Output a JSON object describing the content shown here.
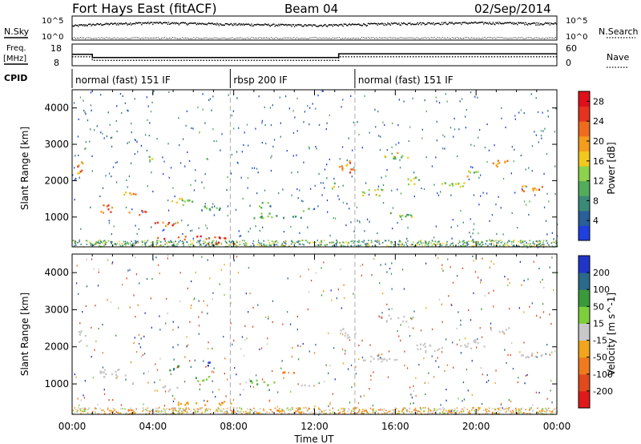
{
  "header": {
    "title": "Fort Hays East (fitACF)",
    "beam": "Beam 04",
    "date": "02/Sep/2014"
  },
  "panels": {
    "nsky_label": "N.Sky",
    "nsearch_label": "N.Search",
    "nsky_ticks": [
      "10^5",
      "10^0"
    ],
    "nsearch_ticks": [
      "10^5",
      "10^0"
    ],
    "freq_label_line1": "Freq.",
    "freq_label_line2": "[MHz]",
    "freq_ticks": [
      "18",
      "8"
    ],
    "nave_label": "Nave",
    "nave_ticks": [
      "60",
      "0"
    ],
    "cpid_label": "CPID"
  },
  "cpid_segments": [
    {
      "label": "normal (fast) 151 IF",
      "start": 0,
      "end": 7.83
    },
    {
      "label": "rbsp 200 IF",
      "start": 7.83,
      "end": 14.0
    },
    {
      "label": "normal (fast) 151 IF",
      "start": 14.0,
      "end": 24
    }
  ],
  "x_axis": {
    "label": "Time UT",
    "ticks": [
      "00:00",
      "04:00",
      "08:00",
      "12:00",
      "16:00",
      "20:00",
      "00:00"
    ],
    "range": [
      0,
      24
    ]
  },
  "power_panel": {
    "ylabel": "Slant Range [km]",
    "yticks": [
      "1000",
      "2000",
      "3000",
      "4000"
    ],
    "ylim": [
      180,
      4500
    ],
    "colorbar_label": "Power [dB]",
    "colorbar_ticks": [
      "4",
      "8",
      "12",
      "16",
      "20",
      "24",
      "28"
    ],
    "colorbar_range": [
      0,
      30
    ],
    "colors": [
      "#1f3fe0",
      "#29609a",
      "#3a8a78",
      "#52ad5a",
      "#8cd24a",
      "#f2c81d",
      "#f59c1d",
      "#f06b1d",
      "#e63320",
      "#e0101a"
    ]
  },
  "velocity_panel": {
    "ylabel": "Slant Range [km]",
    "yticks": [
      "1000",
      "2000",
      "3000",
      "4000"
    ],
    "ylim": [
      180,
      4500
    ],
    "colorbar_label": "Velocity [m s^-1]",
    "colorbar_ticks": [
      "200",
      "100",
      "50",
      "15",
      "-15",
      "-50",
      "-100",
      "-200"
    ],
    "colors": [
      "#2035c8",
      "#2a6a8a",
      "#3a9a3a",
      "#7ccf3a",
      "#c8c8c8",
      "#f2a41d",
      "#f07a1d",
      "#e04a1d",
      "#e01a1a"
    ]
  },
  "chart_data": [
    {
      "type": "line",
      "title": "N.Sky / N.Search",
      "series": [
        {
          "name": "N.Sky",
          "x": [
            0,
            2,
            4,
            6,
            8,
            10,
            12,
            14,
            16,
            18,
            20,
            22,
            24
          ],
          "values": [
            2000,
            8000,
            15000,
            10000,
            6000,
            4000,
            3000,
            5000,
            9000,
            12000,
            15000,
            12000,
            9000
          ]
        },
        {
          "name": "N.Search",
          "x": [
            0,
            12,
            24
          ],
          "values": [
            1,
            1,
            1
          ]
        }
      ]
    },
    {
      "type": "line",
      "title": "Freq. / Nave",
      "series": [
        {
          "name": "Freq.",
          "x": [
            0,
            1.0,
            1.0,
            13.2,
            13.2,
            24
          ],
          "values": [
            14.5,
            14.5,
            12.4,
            12.4,
            14.8,
            14.8
          ]
        },
        {
          "name": "Nave",
          "x": [
            0,
            1.0,
            1.0,
            13.2,
            13.2,
            24
          ],
          "values": [
            25,
            25,
            15,
            15,
            25,
            25
          ]
        }
      ]
    },
    {
      "type": "heatmap",
      "title": "Power [dB]",
      "xlabel": "Time UT",
      "ylabel": "Slant Range [km]",
      "xlim": [
        0,
        24
      ],
      "ylim": [
        180,
        4500
      ],
      "zlim": [
        0,
        30
      ],
      "blobs": [
        {
          "t": 0.4,
          "r": 2350,
          "dt": 0.5,
          "dr": 380,
          "v": 21
        },
        {
          "t": 1.6,
          "r": 1250,
          "dt": 1.0,
          "dr": 230,
          "v": 23
        },
        {
          "t": 2.8,
          "r": 1700,
          "dt": 0.8,
          "dr": 180,
          "v": 20
        },
        {
          "t": 3.2,
          "r": 1150,
          "dt": 0.9,
          "dr": 160,
          "v": 22
        },
        {
          "t": 3.9,
          "r": 2600,
          "dt": 0.5,
          "dr": 180,
          "v": 15
        },
        {
          "t": 4.6,
          "r": 850,
          "dt": 1.3,
          "dr": 180,
          "v": 24
        },
        {
          "t": 5.5,
          "r": 1450,
          "dt": 1.2,
          "dr": 200,
          "v": 14
        },
        {
          "t": 6.7,
          "r": 1250,
          "dt": 1.3,
          "dr": 180,
          "v": 11
        },
        {
          "t": 6.0,
          "r": 450,
          "dt": 3.6,
          "dr": 100,
          "v": 27
        },
        {
          "t": 7.2,
          "r": 300,
          "dt": 1.8,
          "dr": 80,
          "v": 29
        },
        {
          "t": 9.5,
          "r": 1050,
          "dt": 1.6,
          "dr": 150,
          "v": 10
        },
        {
          "t": 9.6,
          "r": 1350,
          "dt": 1.0,
          "dr": 160,
          "v": 9
        },
        {
          "t": 11.0,
          "r": 1000,
          "dt": 1.2,
          "dr": 120,
          "v": 10
        },
        {
          "t": 11.6,
          "r": 1200,
          "dt": 0.7,
          "dr": 120,
          "v": 9
        },
        {
          "t": 12.9,
          "r": 1900,
          "dt": 0.3,
          "dr": 200,
          "v": 12
        },
        {
          "t": 13.6,
          "r": 2400,
          "dt": 0.8,
          "dr": 350,
          "v": 21
        },
        {
          "t": 14.8,
          "r": 1700,
          "dt": 1.3,
          "dr": 250,
          "v": 17
        },
        {
          "t": 16.0,
          "r": 2700,
          "dt": 1.8,
          "dr": 220,
          "v": 15
        },
        {
          "t": 16.4,
          "r": 1100,
          "dt": 1.7,
          "dr": 170,
          "v": 11
        },
        {
          "t": 17.0,
          "r": 2000,
          "dt": 1.2,
          "dr": 220,
          "v": 13
        },
        {
          "t": 18.8,
          "r": 1900,
          "dt": 1.4,
          "dr": 200,
          "v": 14
        },
        {
          "t": 19.8,
          "r": 2200,
          "dt": 1.0,
          "dr": 200,
          "v": 15
        },
        {
          "t": 21.2,
          "r": 2500,
          "dt": 1.0,
          "dr": 220,
          "v": 19
        },
        {
          "t": 22.6,
          "r": 1800,
          "dt": 1.6,
          "dr": 180,
          "v": 20
        }
      ]
    },
    {
      "type": "heatmap",
      "title": "Velocity [m s^-1]",
      "xlabel": "Time UT",
      "ylabel": "Slant Range [km]",
      "xlim": [
        0,
        24
      ],
      "ylim": [
        180,
        4500
      ],
      "zlim": [
        -200,
        200
      ],
      "blobs": [
        {
          "t": 0.4,
          "r": 2300,
          "dt": 0.5,
          "dr": 380,
          "v": 0
        },
        {
          "t": 2.0,
          "r": 1300,
          "dt": 1.5,
          "dr": 260,
          "v": 0
        },
        {
          "t": 4.6,
          "r": 900,
          "dt": 1.3,
          "dr": 160,
          "v": 0
        },
        {
          "t": 5.0,
          "r": 1450,
          "dt": 0.7,
          "dr": 180,
          "v": 35
        },
        {
          "t": 6.6,
          "r": 1550,
          "dt": 0.9,
          "dr": 120,
          "v": 150
        },
        {
          "t": 6.6,
          "r": 1150,
          "dt": 1.2,
          "dr": 160,
          "v": 30
        },
        {
          "t": 6.5,
          "r": 500,
          "dt": 3.8,
          "dr": 120,
          "v": -40
        },
        {
          "t": 9.2,
          "r": 1050,
          "dt": 1.6,
          "dr": 150,
          "v": 30
        },
        {
          "t": 10.6,
          "r": 1300,
          "dt": 0.8,
          "dr": 140,
          "v": -70
        },
        {
          "t": 11.6,
          "r": 1000,
          "dt": 0.8,
          "dr": 120,
          "v": 0
        },
        {
          "t": 13.6,
          "r": 2400,
          "dt": 0.8,
          "dr": 350,
          "v": 0
        },
        {
          "t": 15.2,
          "r": 1700,
          "dt": 1.8,
          "dr": 260,
          "v": 0
        },
        {
          "t": 16.0,
          "r": 2800,
          "dt": 1.8,
          "dr": 240,
          "v": 0
        },
        {
          "t": 17.5,
          "r": 2000,
          "dt": 1.8,
          "dr": 260,
          "v": 0
        },
        {
          "t": 19.8,
          "r": 2100,
          "dt": 1.4,
          "dr": 240,
          "v": 0
        },
        {
          "t": 21.2,
          "r": 2500,
          "dt": 1.0,
          "dr": 220,
          "v": 0
        },
        {
          "t": 22.6,
          "r": 1800,
          "dt": 1.6,
          "dr": 180,
          "v": 0
        }
      ]
    }
  ]
}
